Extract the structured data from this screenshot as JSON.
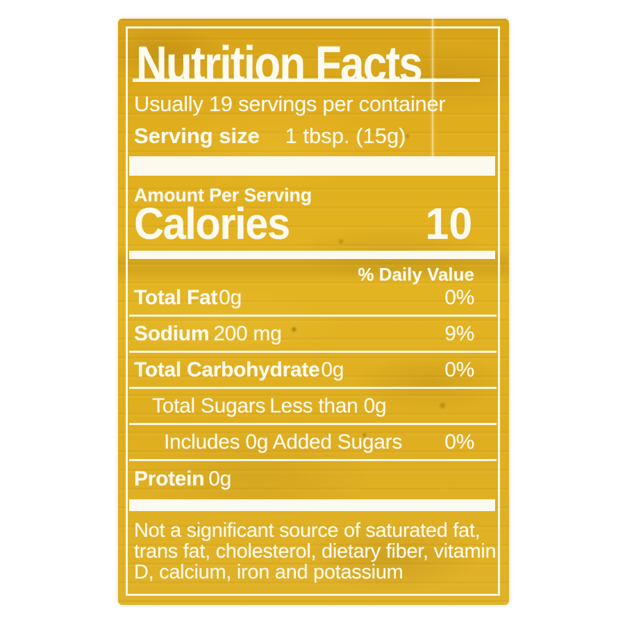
{
  "label": {
    "title": "Nutrition Facts",
    "servings_line": "Usually 19 servings per container",
    "serving_size_label": "Serving size",
    "serving_size_value": "1 tbsp. (15g)",
    "amount_per_serving": "Amount Per Serving",
    "calories_label": "Calories",
    "calories_value": "10",
    "daily_value_header": "% Daily Value",
    "rows": [
      {
        "name": "Total Fat",
        "amount": "0g",
        "dv": "0%"
      },
      {
        "name": "Sodium",
        "amount": "200 mg",
        "dv": "9%"
      },
      {
        "name": "Total Carbohydrate",
        "amount": "0g",
        "dv": "0%"
      },
      {
        "name": "Total Sugars",
        "amount": "Less than 0g",
        "dv": ""
      },
      {
        "name": "Includes 0g Added Sugars",
        "amount": "",
        "dv": "0%"
      },
      {
        "name": "Protein",
        "amount": "0g",
        "dv": ""
      }
    ],
    "footnote_lines": [
      "Not a significant source of saturated fat,",
      "trans fat, cholesterol, dietary fiber, vitamin",
      "D, calcium, iron and potassium"
    ],
    "colors": {
      "label_yellow": "#e3b422",
      "text_white": "#fdfaef"
    }
  }
}
